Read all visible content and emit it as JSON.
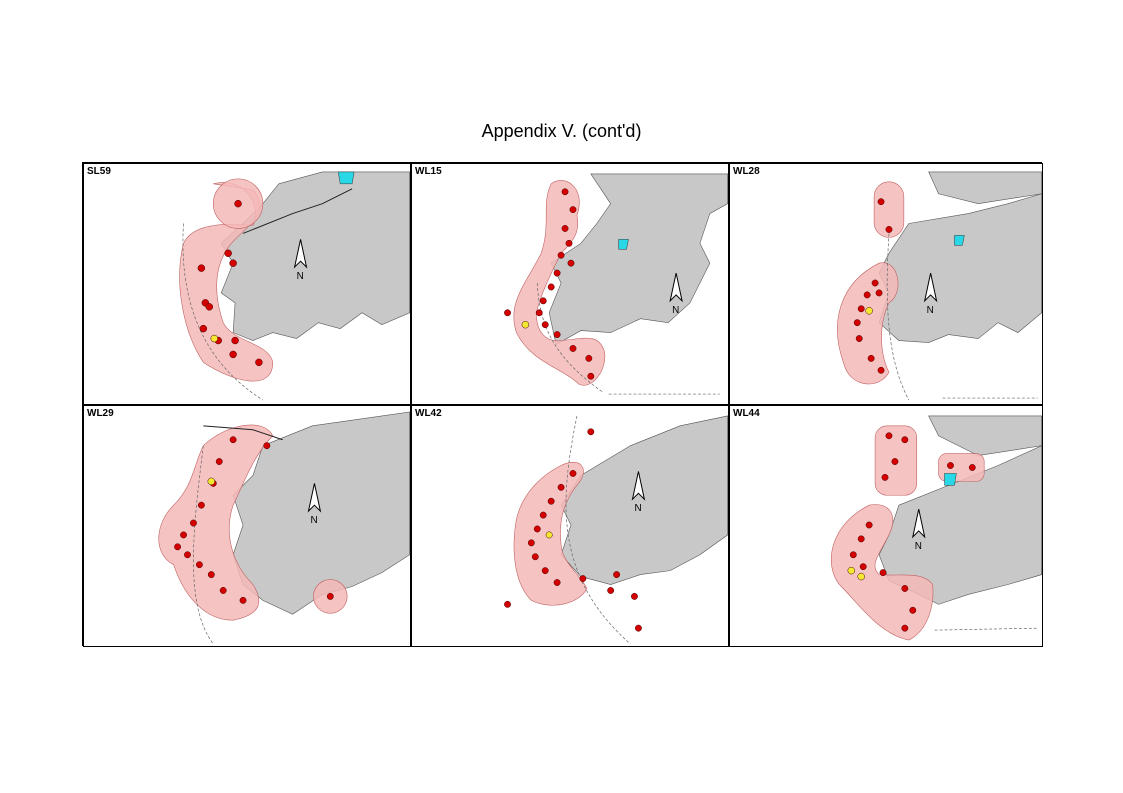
{
  "page": {
    "title": "Appendix V.  (cont'd)"
  },
  "north_label": "N",
  "colors": {
    "land": "#c8c8c8",
    "range": "#f4b8b8",
    "sighting": "#d40000",
    "highlight": "#f5e832",
    "marker": "#29d8e6"
  },
  "panels": [
    {
      "id": "SL59",
      "label": "SL59"
    },
    {
      "id": "WL15",
      "label": "WL15"
    },
    {
      "id": "WL28",
      "label": "WL28"
    },
    {
      "id": "WL29",
      "label": "WL29"
    },
    {
      "id": "WL42",
      "label": "WL42"
    },
    {
      "id": "WL44",
      "label": "WL44"
    }
  ]
}
